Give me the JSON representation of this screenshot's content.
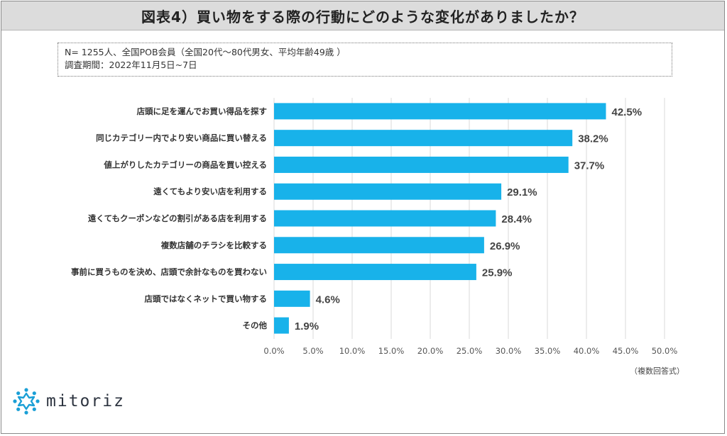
{
  "title": "図表4）買い物をする際の行動にどのような変化がありましたか？",
  "info": {
    "line1": "N= 1255人、全国POB会員（全国20代〜80代男女、平均年齢49歳 ）",
    "line2": "調査期間：2022年11月5日~7日"
  },
  "note": "（複数回答式）",
  "logo": {
    "text": "mitoriz",
    "icon": "mitoriz-logo-icon"
  },
  "colors": {
    "bar": "#18b2ea",
    "grid": "#d9d9d9",
    "title_bg": "#dcdcdc"
  },
  "chart_data": {
    "type": "bar",
    "orientation": "horizontal",
    "categories": [
      "店頭に足を運んでお買い得品を探す",
      "同じカテゴリー内でより安い商品に買い替える",
      "値上がりしたカテゴリーの商品を買い控える",
      "遠くてもより安い店を利用する",
      "遠くてもクーポンなどの割引がある店を利用する",
      "複数店舗のチラシを比較する",
      "事前に買うものを決め、店頭で余計なものを買わない",
      "店頭ではなくネットで買い物する",
      "その他"
    ],
    "values": [
      42.5,
      38.2,
      37.7,
      29.1,
      28.4,
      26.9,
      25.9,
      4.6,
      1.9
    ],
    "value_labels": [
      "42.5%",
      "38.2%",
      "37.7%",
      "29.1%",
      "28.4%",
      "26.9%",
      "25.9%",
      "4.6%",
      "1.9%"
    ],
    "xlim": [
      0,
      50
    ],
    "ticks": [
      0,
      5,
      10,
      15,
      20,
      25,
      30,
      35,
      40,
      45,
      50
    ],
    "tick_labels": [
      "0.0%",
      "5.0%",
      "10.0%",
      "15.0%",
      "20.0%",
      "25.0%",
      "30.0%",
      "35.0%",
      "40.0%",
      "45.0%",
      "50.0%"
    ],
    "grid": true,
    "legend": "none"
  }
}
